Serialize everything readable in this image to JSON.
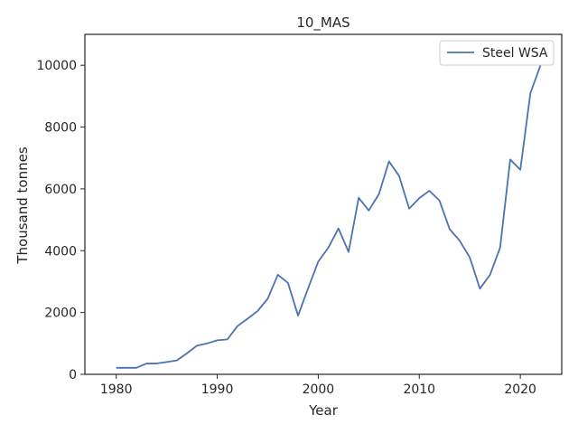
{
  "chart_data": {
    "type": "line",
    "title": "10_MAS",
    "xlabel": "Year",
    "ylabel": "Thousand tonnes",
    "xlim": [
      1976.9,
      2024.1
    ],
    "ylim": [
      0,
      11000
    ],
    "xticks": [
      1980,
      1990,
      2000,
      2010,
      2020
    ],
    "yticks": [
      0,
      2000,
      4000,
      6000,
      8000,
      10000
    ],
    "grid": false,
    "legend_position": "top-right",
    "series": [
      {
        "name": "Steel WSA",
        "color": "#4c72b0",
        "x": [
          1980,
          1981,
          1982,
          1983,
          1984,
          1985,
          1986,
          1987,
          1988,
          1989,
          1990,
          1991,
          1992,
          1993,
          1994,
          1995,
          1996,
          1997,
          1998,
          1999,
          2000,
          2001,
          2002,
          2003,
          2004,
          2005,
          2006,
          2007,
          2008,
          2009,
          2010,
          2011,
          2012,
          2013,
          2014,
          2015,
          2016,
          2017,
          2018,
          2019,
          2020,
          2021,
          2022
        ],
        "y": [
          210,
          210,
          210,
          350,
          350,
          400,
          450,
          680,
          930,
          1000,
          1100,
          1130,
          1560,
          1800,
          2050,
          2450,
          3220,
          2960,
          1900,
          2790,
          3650,
          4100,
          4720,
          3960,
          5710,
          5300,
          5830,
          6890,
          6420,
          5360,
          5700,
          5940,
          5620,
          4700,
          4320,
          3780,
          2770,
          3220,
          4100,
          6950,
          6620,
          9100,
          10000
        ]
      }
    ]
  }
}
